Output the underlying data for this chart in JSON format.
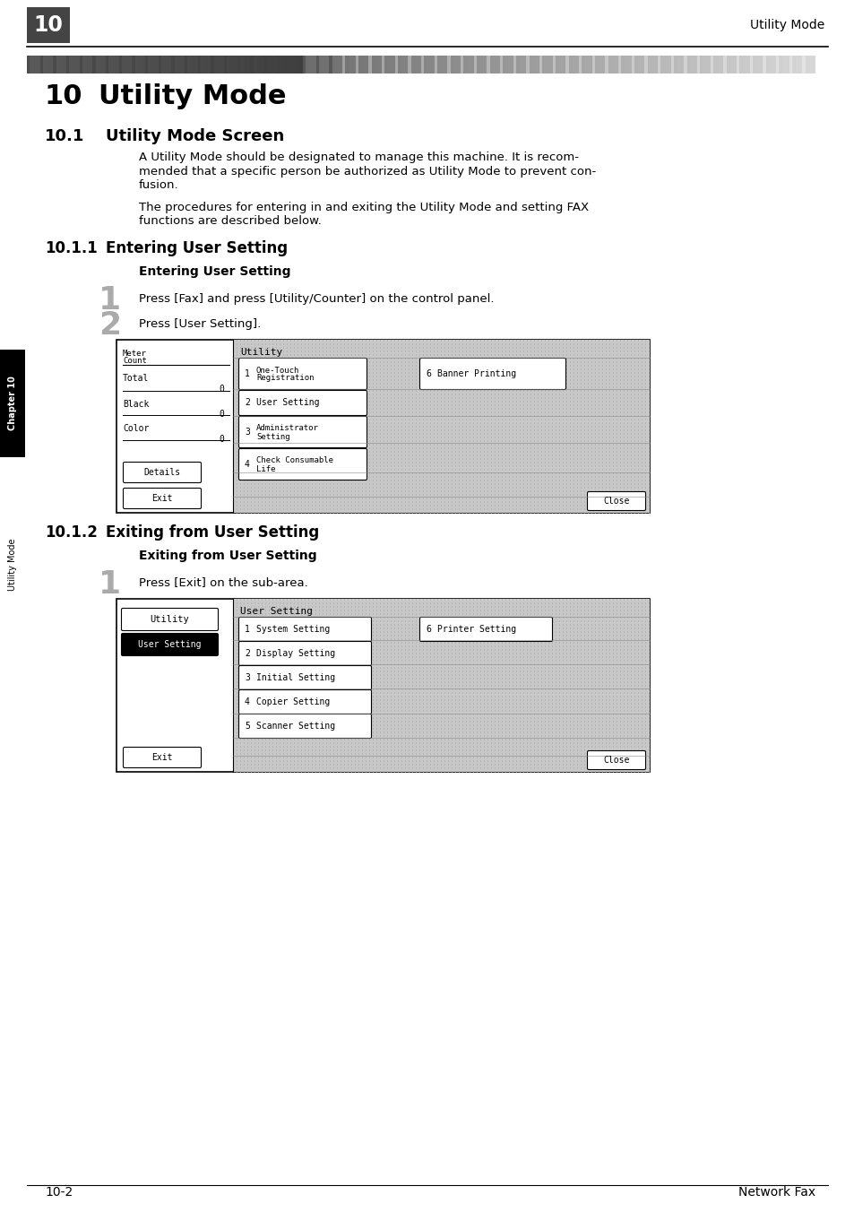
{
  "page_num": "10",
  "header_right": "Utility Mode",
  "chapter_title": "10   Utility Mode",
  "section_1_num": "10.1",
  "section_1_title": "Utility Mode Screen",
  "para_1a_lines": [
    "A Utility Mode should be designated to manage this machine. It is recom-",
    "mended that a specific person be authorized as Utility Mode to prevent con-",
    "fusion."
  ],
  "para_1b_lines": [
    "The procedures for entering in and exiting the Utility Mode and setting FAX",
    "functions are described below."
  ],
  "section_2_num": "10.1.1",
  "section_2_title": "Entering User Setting",
  "bold_label_1": "Entering User Setting",
  "step1_num": "1",
  "step1_text": "Press [Fax] and press [Utility/Counter] on the control panel.",
  "step2_num": "2",
  "step2_text": "Press [User Setting].",
  "section_3_num": "10.1.2",
  "section_3_title": "Exiting from User Setting",
  "bold_label_2": "Exiting from User Setting",
  "step3_num": "1",
  "step3_text": "Press [Exit] on the sub-area.",
  "footer_left": "10-2",
  "footer_right": "Network Fax",
  "sidebar_label_top": "Chapter 10",
  "sidebar_label_bottom": "Utility Mode",
  "bg_color": "#ffffff",
  "sidebar_bg": "#000000"
}
